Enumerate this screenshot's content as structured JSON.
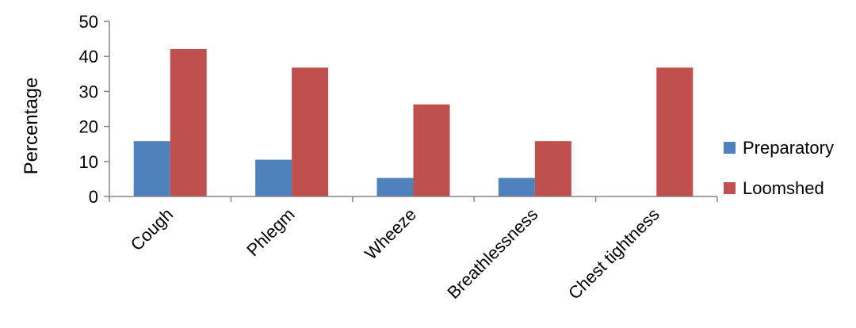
{
  "chart_data": {
    "type": "bar",
    "title": "",
    "xlabel": "",
    "ylabel": "Percentage",
    "ylim": [
      0,
      50
    ],
    "yticks": [
      0,
      10,
      20,
      30,
      40,
      50
    ],
    "grid": false,
    "legend_position": "right",
    "categories": [
      "Cough",
      "Phlegm",
      "Wheeze",
      "Breathlessness",
      "Chest tightness"
    ],
    "series": [
      {
        "name": "Preparatory",
        "color": "#4F81BD",
        "values": [
          15.8,
          10.5,
          5.3,
          5.3,
          0
        ]
      },
      {
        "name": "Loomshed",
        "color": "#C0504D",
        "values": [
          42.1,
          36.8,
          26.3,
          15.8,
          36.8
        ]
      }
    ]
  }
}
